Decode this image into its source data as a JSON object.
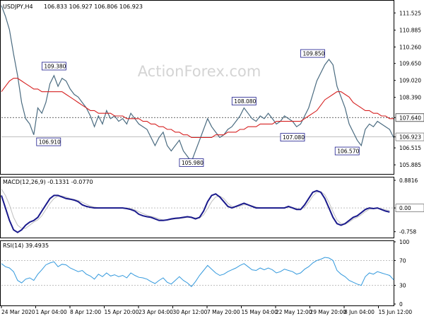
{
  "header": {
    "symbol": "USDJPY,H4",
    "ohlc": "106.833 106.927 106.806 106.923"
  },
  "watermark": "ActionForex.com",
  "chart_data": [
    {
      "id": "price",
      "type": "line",
      "ylim": [
        105.6,
        111.9
      ],
      "y_ticks": [
        "111.525",
        "110.885",
        "110.260",
        "109.650",
        "109.020",
        "108.390",
        "107.640",
        "106.923",
        "106.515",
        "105.885"
      ],
      "x_tick_labels": [
        "24 Mar 2020",
        "1 Apr 04:00",
        "8 Apr 12:00",
        "15 Apr 20:00",
        "23 Apr 04:00",
        "30 Apr 12:00",
        "7 May 20:00",
        "15 May 04:00",
        "22 May 12:00",
        "29 May 20:00",
        "8 Jun 04:00",
        "15 Jun 12:00"
      ],
      "series": [
        {
          "color": "#4a6b80",
          "values": [
            111.8,
            111.4,
            110.9,
            110.0,
            109.2,
            108.2,
            107.6,
            107.4,
            107.0,
            108.0,
            107.8,
            108.2,
            108.9,
            109.2,
            108.8,
            109.1,
            109.0,
            108.7,
            108.5,
            108.4,
            108.2,
            108.0,
            107.7,
            107.3,
            107.7,
            107.4,
            107.9,
            107.6,
            107.7,
            107.5,
            107.6,
            107.4,
            107.8,
            107.6,
            107.4,
            107.3,
            107.2,
            106.9,
            106.6,
            106.9,
            107.1,
            106.6,
            106.4,
            106.6,
            106.8,
            106.4,
            106.2,
            106.0,
            106.4,
            106.8,
            107.2,
            107.6,
            107.3,
            107.1,
            106.9,
            107.0,
            107.2,
            107.3,
            107.5,
            107.7,
            108.0,
            107.8,
            107.6,
            107.5,
            107.7,
            107.6,
            107.8,
            107.6,
            107.4,
            107.5,
            107.7,
            107.6,
            107.5,
            107.3,
            107.4,
            107.7,
            108.0,
            108.5,
            109.0,
            109.3,
            109.6,
            109.8,
            109.6,
            108.8,
            108.4,
            108.0,
            107.4,
            107.1,
            106.8,
            106.6,
            107.2,
            107.4,
            107.3,
            107.5,
            107.4,
            107.3,
            107.2,
            106.9
          ]
        },
        {
          "color": "#d62020",
          "values": [
            108.6,
            108.8,
            109.0,
            109.1,
            109.1,
            109.0,
            108.9,
            108.8,
            108.7,
            108.7,
            108.6,
            108.6,
            108.6,
            108.6,
            108.6,
            108.6,
            108.5,
            108.4,
            108.3,
            108.2,
            108.1,
            108.0,
            107.9,
            107.9,
            107.8,
            107.8,
            107.8,
            107.8,
            107.7,
            107.7,
            107.7,
            107.6,
            107.6,
            107.6,
            107.6,
            107.5,
            107.5,
            107.4,
            107.4,
            107.3,
            107.3,
            107.2,
            107.2,
            107.1,
            107.1,
            107.0,
            107.0,
            106.9,
            106.9,
            106.9,
            106.9,
            106.9,
            106.9,
            107.0,
            107.0,
            107.0,
            107.1,
            107.1,
            107.1,
            107.2,
            107.2,
            107.3,
            107.3,
            107.3,
            107.4,
            107.4,
            107.4,
            107.4,
            107.5,
            107.5,
            107.5,
            107.5,
            107.5,
            107.5,
            107.5,
            107.6,
            107.7,
            107.8,
            107.9,
            108.1,
            108.3,
            108.4,
            108.5,
            108.6,
            108.6,
            108.5,
            108.4,
            108.2,
            108.1,
            108.0,
            107.9,
            107.9,
            107.8,
            107.8,
            107.7,
            107.7,
            107.6,
            107.6
          ]
        }
      ],
      "hline": 107.64,
      "current_price": 106.923,
      "annotations": [
        {
          "label": "109.380",
          "i": 13,
          "value": 109.38
        },
        {
          "label": "106.910",
          "i": 8,
          "value": 106.91
        },
        {
          "label": "105.980",
          "i": 47,
          "value": 105.98
        },
        {
          "label": "108.080",
          "i": 60,
          "value": 108.08
        },
        {
          "label": "107.080",
          "i": 72,
          "value": 107.08
        },
        {
          "label": "109.850",
          "i": 81,
          "value": 109.85
        },
        {
          "label": "106.570",
          "i": 89,
          "value": 106.57
        }
      ]
    },
    {
      "id": "macd",
      "type": "line",
      "title": "MACD(12,26,9) -0.1331 -0.0770",
      "ylim": [
        -0.9,
        0.95
      ],
      "y_ticks": [
        "0.8816",
        "0.00",
        "-0.758"
      ],
      "series": [
        {
          "color": "#1a1a8c",
          "values": [
            0.4,
            0.0,
            -0.4,
            -0.7,
            -0.78,
            -0.7,
            -0.55,
            -0.45,
            -0.4,
            -0.3,
            -0.1,
            0.1,
            0.3,
            0.4,
            0.4,
            0.35,
            0.3,
            0.28,
            0.25,
            0.2,
            0.1,
            0.05,
            0.02,
            0.0,
            0.0,
            0.0,
            0.0,
            0.0,
            0.0,
            0.0,
            0.0,
            -0.02,
            -0.05,
            -0.1,
            -0.2,
            -0.25,
            -0.28,
            -0.3,
            -0.35,
            -0.4,
            -0.4,
            -0.38,
            -0.35,
            -0.33,
            -0.32,
            -0.3,
            -0.28,
            -0.3,
            -0.35,
            -0.3,
            -0.1,
            0.2,
            0.4,
            0.45,
            0.35,
            0.2,
            0.05,
            0.0,
            0.05,
            0.1,
            0.15,
            0.1,
            0.05,
            0.0,
            0.0,
            0.0,
            0.0,
            0.0,
            0.0,
            0.0,
            0.0,
            0.05,
            0.0,
            -0.05,
            -0.05,
            0.1,
            0.3,
            0.5,
            0.55,
            0.5,
            0.3,
            0.0,
            -0.3,
            -0.5,
            -0.55,
            -0.5,
            -0.4,
            -0.3,
            -0.25,
            -0.15,
            -0.05,
            0.0,
            -0.02,
            0.0,
            -0.05,
            -0.1,
            -0.13
          ]
        },
        {
          "color": "#c0c0c0",
          "values": [
            0.6,
            0.4,
            0.1,
            -0.3,
            -0.55,
            -0.65,
            -0.65,
            -0.55,
            -0.45,
            -0.38,
            -0.25,
            -0.05,
            0.15,
            0.3,
            0.38,
            0.38,
            0.35,
            0.3,
            0.27,
            0.24,
            0.18,
            0.12,
            0.06,
            0.03,
            0.01,
            0.0,
            0.0,
            0.0,
            0.0,
            0.0,
            0.0,
            0.0,
            -0.02,
            -0.06,
            -0.12,
            -0.18,
            -0.23,
            -0.27,
            -0.3,
            -0.35,
            -0.38,
            -0.38,
            -0.37,
            -0.35,
            -0.34,
            -0.32,
            -0.3,
            -0.3,
            -0.32,
            -0.32,
            -0.22,
            -0.02,
            0.2,
            0.35,
            0.38,
            0.3,
            0.15,
            0.05,
            0.03,
            0.06,
            0.1,
            0.1,
            0.07,
            0.03,
            0.01,
            0.0,
            0.0,
            0.0,
            0.0,
            0.0,
            0.0,
            0.02,
            0.02,
            -0.02,
            -0.04,
            0.02,
            0.18,
            0.38,
            0.5,
            0.52,
            0.42,
            0.18,
            -0.12,
            -0.38,
            -0.5,
            -0.52,
            -0.45,
            -0.36,
            -0.3,
            -0.22,
            -0.12,
            -0.04,
            -0.02,
            -0.01,
            -0.03,
            -0.06,
            -0.08
          ]
        }
      ]
    },
    {
      "id": "rsi",
      "type": "line",
      "title": "RSI(14) 39.4935",
      "ylim": [
        0,
        100
      ],
      "y_ticks": [
        "100",
        "70",
        "30",
        "0"
      ],
      "levels": [
        70,
        30
      ],
      "series": [
        {
          "color": "#3399dd",
          "values": [
            65,
            60,
            58,
            52,
            38,
            34,
            40,
            42,
            38,
            48,
            55,
            63,
            66,
            68,
            60,
            64,
            63,
            58,
            55,
            52,
            54,
            48,
            45,
            40,
            48,
            44,
            50,
            45,
            47,
            44,
            46,
            42,
            50,
            46,
            43,
            42,
            40,
            36,
            33,
            38,
            42,
            35,
            32,
            38,
            44,
            38,
            34,
            28,
            36,
            46,
            54,
            62,
            56,
            50,
            46,
            48,
            52,
            55,
            58,
            62,
            65,
            60,
            55,
            54,
            58,
            55,
            58,
            55,
            50,
            52,
            56,
            54,
            52,
            48,
            50,
            56,
            60,
            66,
            70,
            72,
            75,
            74,
            70,
            54,
            48,
            44,
            38,
            35,
            32,
            30,
            44,
            50,
            48,
            52,
            50,
            48,
            46,
            39
          ]
        }
      ]
    }
  ]
}
